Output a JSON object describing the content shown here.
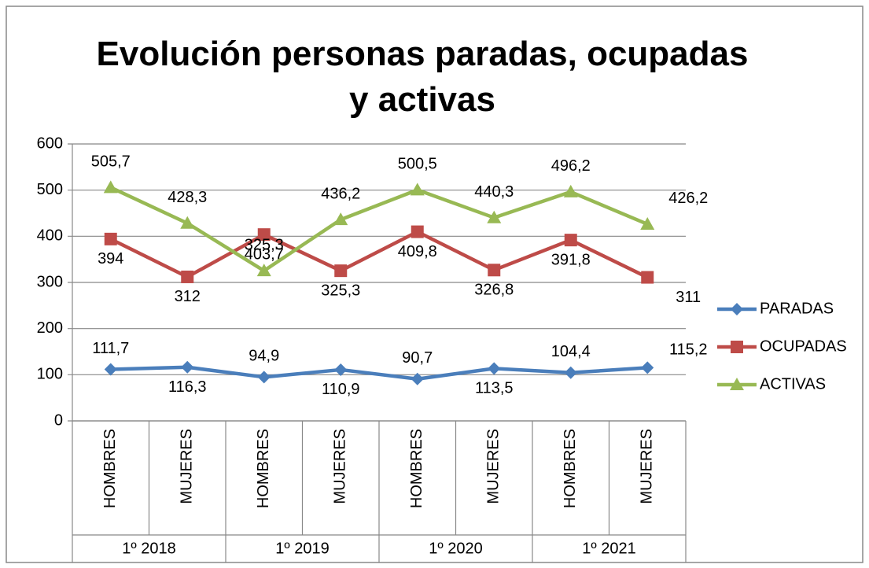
{
  "chart_data": {
    "type": "line",
    "title": "Evolución personas paradas, ocupadas y activas",
    "categories": [
      "HOMBRES",
      "MUJERES",
      "HOMBRES",
      "MUJERES",
      "HOMBRES",
      "MUJERES",
      "HOMBRES",
      "MUJERES"
    ],
    "groups": [
      "1º 2018",
      "1º 2019",
      "1º 2020",
      "1º 2021"
    ],
    "series": [
      {
        "name": "PARADAS",
        "color": "#4a7ebb",
        "marker": "diamond",
        "values": [
          111.7,
          116.3,
          94.9,
          110.9,
          90.7,
          113.5,
          104.4,
          115.2
        ],
        "value_labels": [
          "111,7",
          "116,3",
          "94,9",
          "110,9",
          "90,7",
          "113,5",
          "104,4",
          "115,2"
        ]
      },
      {
        "name": "OCUPADAS",
        "color": "#be4b48",
        "marker": "square",
        "values": [
          394,
          312,
          403.7,
          325.3,
          409.8,
          326.8,
          391.8,
          311
        ],
        "value_labels": [
          "394",
          "312",
          "403,7",
          "325,3",
          "409,8",
          "326,8",
          "391,8",
          "311"
        ]
      },
      {
        "name": "ACTIVAS",
        "color": "#98b954",
        "marker": "triangle",
        "values": [
          505.7,
          428.3,
          325.3,
          436.2,
          500.5,
          440.3,
          496.2,
          426.2
        ],
        "value_labels": [
          "505,7",
          "428,3",
          "325,3",
          "436,2",
          "500,5",
          "440,3",
          "496,2",
          "426,2"
        ]
      }
    ],
    "ylim": [
      0,
      600
    ],
    "yticks": [
      0,
      100,
      200,
      300,
      400,
      500,
      600
    ],
    "grid": true,
    "legend": "right"
  }
}
